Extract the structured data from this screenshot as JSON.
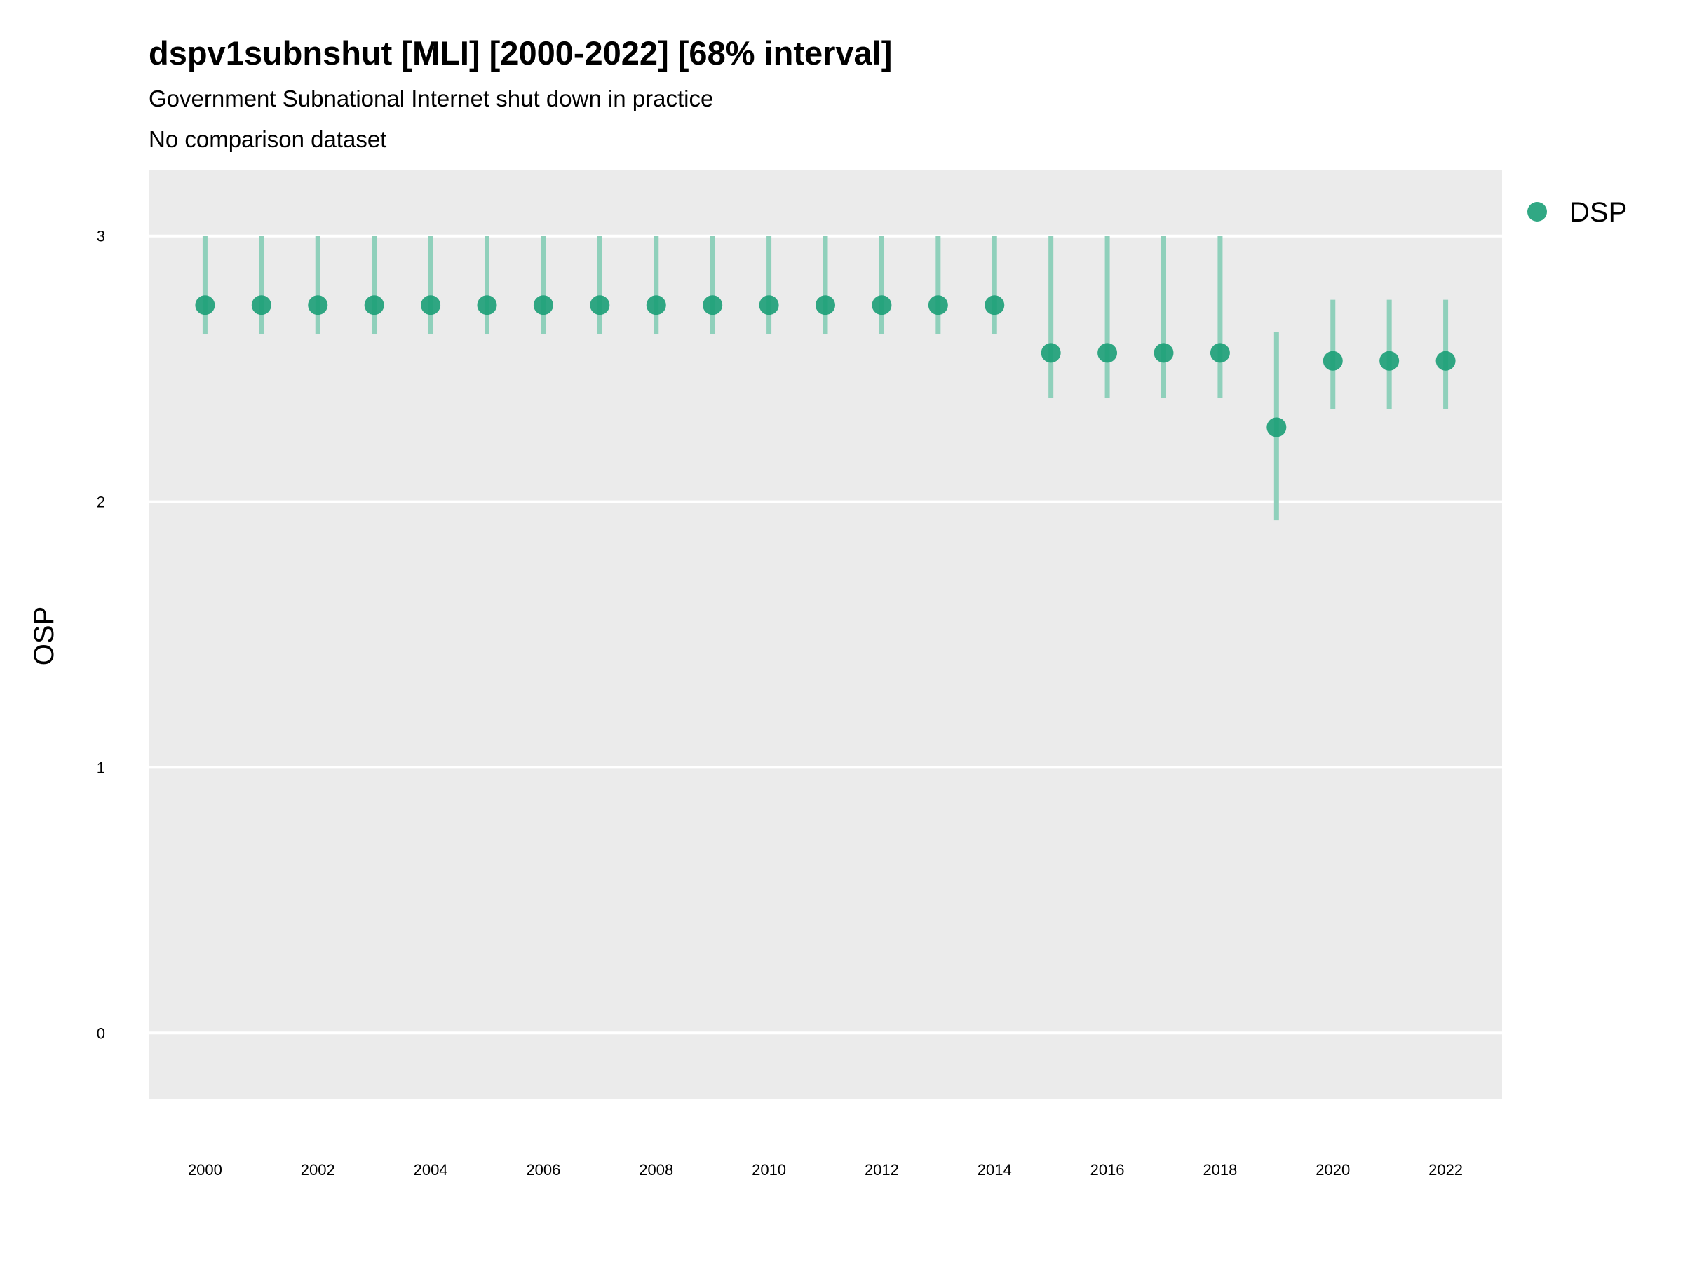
{
  "chart_data": {
    "type": "scatter",
    "title": "dspv1subnshut [MLI] [2000-2022] [68% interval]",
    "subtitle": "Government Subnational Internet shut down in practice",
    "subtitle2": "No comparison dataset",
    "ylabel": "OSP",
    "xlabel": "",
    "ylim": [
      -0.25,
      3.25
    ],
    "yticks": [
      "0",
      "1",
      "2",
      "3"
    ],
    "xticks": [
      "2000",
      "2002",
      "2004",
      "2006",
      "2008",
      "2010",
      "2012",
      "2014",
      "2016",
      "2018",
      "2020",
      "2022"
    ],
    "legend_position": "right",
    "grid": true,
    "colors": {
      "point": "#1b9e77",
      "interval": "#8fd0bb",
      "panel": "#ebebeb",
      "grid": "#ffffff"
    },
    "series": [
      {
        "name": "DSP",
        "x": [
          2000,
          2001,
          2002,
          2003,
          2004,
          2005,
          2006,
          2007,
          2008,
          2009,
          2010,
          2011,
          2012,
          2013,
          2014,
          2015,
          2016,
          2017,
          2018,
          2019,
          2020,
          2021,
          2022
        ],
        "y": [
          2.74,
          2.74,
          2.74,
          2.74,
          2.74,
          2.74,
          2.74,
          2.74,
          2.74,
          2.74,
          2.74,
          2.74,
          2.74,
          2.74,
          2.74,
          2.56,
          2.56,
          2.56,
          2.56,
          2.28,
          2.53,
          2.53,
          2.53
        ],
        "lower": [
          2.63,
          2.63,
          2.63,
          2.63,
          2.63,
          2.63,
          2.63,
          2.63,
          2.63,
          2.63,
          2.63,
          2.63,
          2.63,
          2.63,
          2.63,
          2.39,
          2.39,
          2.39,
          2.39,
          1.93,
          2.35,
          2.35,
          2.35
        ],
        "upper": [
          3.0,
          3.0,
          3.0,
          3.0,
          3.0,
          3.0,
          3.0,
          3.0,
          3.0,
          3.0,
          3.0,
          3.0,
          3.0,
          3.0,
          3.0,
          3.0,
          3.0,
          3.0,
          3.0,
          2.64,
          2.76,
          2.76,
          2.76
        ]
      }
    ]
  }
}
